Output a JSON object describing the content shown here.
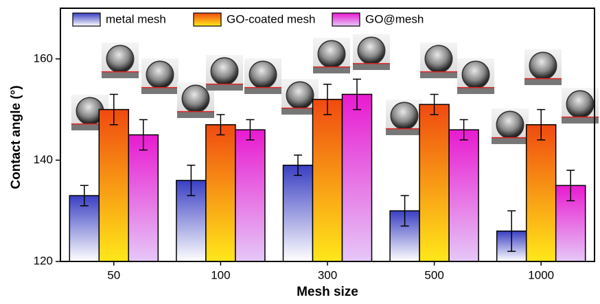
{
  "chart_data": {
    "type": "bar",
    "xlabel": "Mesh size",
    "ylabel": "Contact angle (°)",
    "categories": [
      "50",
      "100",
      "300",
      "500",
      "1000"
    ],
    "series": [
      {
        "name": "metal mesh",
        "color": "#3a3fc2",
        "color_end": "#ffffff",
        "values": [
          133,
          136,
          139,
          130,
          126
        ],
        "errors": [
          2,
          3,
          2,
          3,
          4
        ]
      },
      {
        "name": "GO-coated mesh",
        "color": "#f04a10",
        "color_end": "#ffe81a",
        "values": [
          150,
          147,
          152,
          151,
          147
        ],
        "errors": [
          3,
          2,
          3,
          2,
          3
        ]
      },
      {
        "name": "GO@mesh",
        "color": "#e81ad0",
        "color_end": "#e6c8f8",
        "values": [
          145,
          146,
          153,
          146,
          135
        ],
        "errors": [
          3,
          2,
          3,
          2,
          3
        ]
      }
    ],
    "ylim": [
      120,
      170
    ],
    "yticks": [
      120,
      140,
      160
    ],
    "grid": false
  }
}
